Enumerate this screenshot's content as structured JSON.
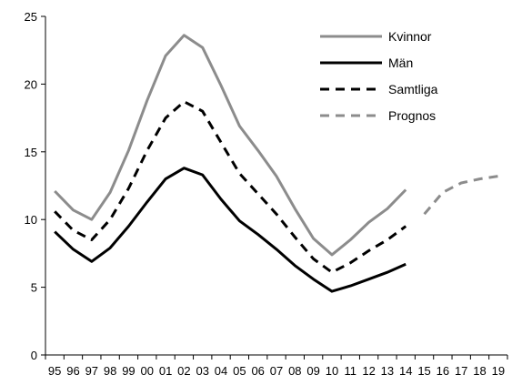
{
  "chart_data": {
    "type": "line",
    "title": "",
    "xlabel": "",
    "ylabel": "",
    "categories": [
      "95",
      "96",
      "97",
      "98",
      "99",
      "00",
      "01",
      "02",
      "03",
      "04",
      "05",
      "06",
      "07",
      "08",
      "09",
      "10",
      "11",
      "12",
      "13",
      "14",
      "15",
      "16",
      "17",
      "18",
      "19"
    ],
    "ylim": [
      0,
      25
    ],
    "yticks": [
      0,
      5,
      10,
      15,
      20,
      25
    ],
    "grid": false,
    "legend_placement": "top-right",
    "series": [
      {
        "name": "Kvinnor",
        "color": "#8c8c8c",
        "dash": "solid",
        "values": [
          12.1,
          10.7,
          10.0,
          12.0,
          15.1,
          18.8,
          22.1,
          23.6,
          22.7,
          19.9,
          16.9,
          15.1,
          13.2,
          10.8,
          8.6,
          7.4,
          8.5,
          9.8,
          10.8,
          12.2,
          null,
          null,
          null,
          null,
          null
        ]
      },
      {
        "name": "Män",
        "color": "#000000",
        "dash": "solid",
        "values": [
          9.1,
          7.8,
          6.9,
          7.9,
          9.5,
          11.3,
          13.0,
          13.8,
          13.3,
          11.5,
          9.9,
          8.9,
          7.8,
          6.6,
          5.6,
          4.7,
          5.1,
          5.6,
          6.1,
          6.7,
          null,
          null,
          null,
          null,
          null
        ]
      },
      {
        "name": "Samtliga",
        "color": "#000000",
        "dash": "dashed",
        "values": [
          10.6,
          9.2,
          8.5,
          10.0,
          12.3,
          15.1,
          17.5,
          18.7,
          18.0,
          15.7,
          13.4,
          11.9,
          10.4,
          8.7,
          7.1,
          6.1,
          6.8,
          7.7,
          8.5,
          9.5,
          null,
          null,
          null,
          null,
          null
        ]
      },
      {
        "name": "Prognos",
        "color": "#8c8c8c",
        "dash": "dashed",
        "values": [
          null,
          null,
          null,
          null,
          null,
          null,
          null,
          null,
          null,
          null,
          null,
          null,
          null,
          null,
          null,
          null,
          null,
          null,
          null,
          null,
          10.4,
          12.0,
          12.7,
          13.0,
          13.2
        ]
      }
    ]
  }
}
